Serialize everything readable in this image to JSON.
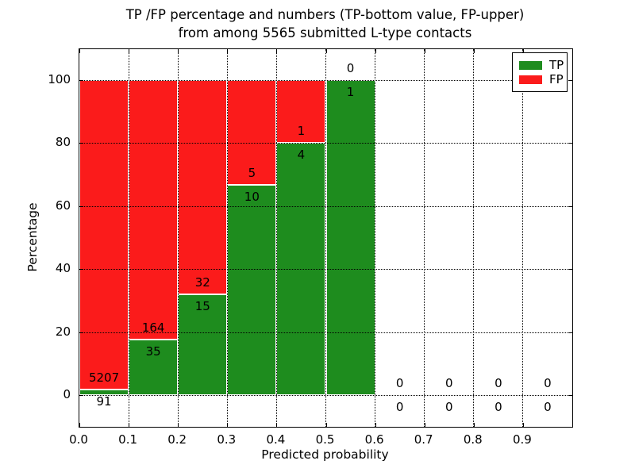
{
  "figure": {
    "title_line1": "TP /FP percentage and numbers (TP-bottom value, FP-upper)",
    "title_line2": "from among 5565 submitted L-type contacts",
    "xlabel": "Predicted probability",
    "ylabel": "Percentage"
  },
  "legend": {
    "items": [
      {
        "label": "TP",
        "color": "#1e8c1e"
      },
      {
        "label": "FP",
        "color": "#fb1b1b"
      }
    ]
  },
  "chart_data": {
    "type": "bar",
    "stacked": true,
    "title": "TP /FP percentage and numbers (TP-bottom value, FP-upper) from among 5565 submitted L-type contacts",
    "xlabel": "Predicted probability",
    "ylabel": "Percentage",
    "total_contacts": 5565,
    "categories": [
      "0.0-0.1",
      "0.1-0.2",
      "0.2-0.3",
      "0.3-0.4",
      "0.4-0.5",
      "0.5-0.6",
      "0.6-0.7",
      "0.7-0.8",
      "0.8-0.9",
      "0.9-1.0"
    ],
    "bin_starts": [
      0.0,
      0.1,
      0.2,
      0.3,
      0.4,
      0.5,
      0.6,
      0.7,
      0.8,
      0.9
    ],
    "bin_width": 0.1,
    "series": [
      {
        "name": "TP",
        "color": "#1e8c1e",
        "counts": [
          91,
          35,
          15,
          10,
          4,
          1,
          0,
          0,
          0,
          0
        ]
      },
      {
        "name": "FP",
        "color": "#fb1b1b",
        "counts": [
          5207,
          164,
          32,
          5,
          1,
          0,
          0,
          0,
          0,
          0
        ]
      }
    ],
    "tp_percent_displayed": [
      1.7,
      17.6,
      31.9,
      66.7,
      80.0,
      100.0,
      null,
      null,
      null,
      null
    ],
    "xticks": [
      "0.0",
      "0.1",
      "0.2",
      "0.3",
      "0.4",
      "0.5",
      "0.6",
      "0.7",
      "0.8",
      "0.9"
    ],
    "yticks": [
      0,
      20,
      40,
      60,
      80,
      100
    ],
    "xlim": [
      0.0,
      1.0
    ],
    "ylim": [
      -10,
      110
    ],
    "grid": "dotted",
    "legend_position": "upper right"
  }
}
